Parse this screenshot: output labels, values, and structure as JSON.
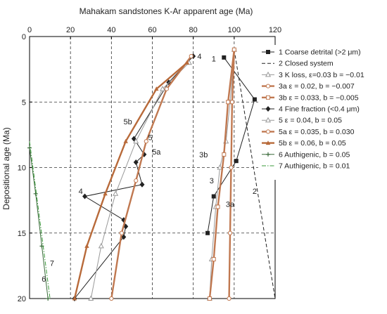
{
  "chart_data": {
    "type": "line",
    "title": "",
    "xlabel": "Mahakam sandstones K-Ar apparent age (Ma)",
    "ylabel": "Depositional age (Ma)",
    "xlim": [
      0,
      120
    ],
    "ylim": [
      0,
      20
    ],
    "y_inverted": true,
    "x_axis_position": "top",
    "xticks": [
      0,
      20,
      40,
      60,
      80,
      100,
      120
    ],
    "yticks": [
      0,
      5,
      10,
      15,
      20
    ],
    "grid": "dashed major gridlines",
    "legend_position": "top-right",
    "series": [
      {
        "name": "1 Coarse detrital (>2 μm)",
        "color": "#222222",
        "marker": "square-filled",
        "line": "solid-thin",
        "points": [
          [
            95,
            1.6
          ],
          [
            110,
            4.8
          ],
          [
            101,
            9.5
          ],
          [
            90,
            12.2
          ],
          [
            87,
            15
          ]
        ]
      },
      {
        "name": "2 Closed system",
        "color": "#222222",
        "marker": "none",
        "line": "dashed",
        "points": [
          [
            100,
            1
          ],
          [
            120,
            20
          ]
        ]
      },
      {
        "name": "3 K loss, ε=0.03 b = −0.01",
        "color": "#999999",
        "marker": "triangle-open",
        "line": "solid-thin",
        "points": [
          [
            100,
            1
          ],
          [
            98,
            5
          ],
          [
            96,
            8
          ],
          [
            93,
            10
          ],
          [
            91,
            13
          ],
          [
            89,
            17
          ],
          [
            88,
            20
          ]
        ]
      },
      {
        "name": "3a ε = 0.02, b = −0.007",
        "color": "#c07850",
        "marker": "circle-open",
        "line": "solid-thick",
        "points": [
          [
            100,
            1
          ],
          [
            99,
            5
          ],
          [
            98.5,
            10
          ],
          [
            98,
            15
          ],
          [
            97.5,
            20
          ]
        ]
      },
      {
        "name": "3b ε = 0.033, b = −0.005",
        "color": "#c07850",
        "marker": "square-open",
        "line": "solid-thick",
        "points": [
          [
            100,
            1
          ],
          [
            97,
            5
          ],
          [
            95,
            9
          ],
          [
            92,
            13
          ],
          [
            90,
            17
          ],
          [
            88,
            20
          ]
        ]
      },
      {
        "name": "4 Fine fraction (<0.4 μm)",
        "color": "#222222",
        "marker": "diamond-filled",
        "line": "solid-thin",
        "points": [
          [
            80,
            1.5
          ],
          [
            68,
            3.5
          ],
          [
            51,
            7.8
          ],
          [
            56,
            9
          ],
          [
            52,
            9.6
          ],
          [
            55,
            11.3
          ],
          [
            27,
            12.2
          ],
          [
            46,
            14
          ],
          [
            47,
            14.5
          ],
          [
            46,
            15.3
          ],
          [
            22,
            20
          ]
        ]
      },
      {
        "name": "5 ε = 0.04, b = 0.05",
        "color": "#999999",
        "marker": "triangle-open",
        "line": "solid-thin",
        "points": [
          [
            78,
            2
          ],
          [
            65,
            4
          ],
          [
            52,
            8
          ],
          [
            42,
            12
          ],
          [
            35,
            16
          ],
          [
            30,
            20
          ]
        ]
      },
      {
        "name": "5a ε = 0.035, b = 0.030",
        "color": "#c07850",
        "marker": "circle-open",
        "line": "solid-thick",
        "points": [
          [
            79,
            1.5
          ],
          [
            67,
            4
          ],
          [
            57,
            8
          ],
          [
            52,
            11
          ],
          [
            45,
            15
          ],
          [
            40,
            20
          ]
        ]
      },
      {
        "name": "5b ε = 0.06, b = 0.05",
        "color": "#b86a3a",
        "marker": "triangle-filled",
        "line": "solid-thick",
        "points": [
          [
            77,
            2
          ],
          [
            62,
            4
          ],
          [
            47,
            8
          ],
          [
            37,
            12
          ],
          [
            28,
            16
          ],
          [
            22,
            20
          ]
        ]
      },
      {
        "name": "6 Authigenic, b = 0.05",
        "color": "#3a6a3a",
        "marker": "plus",
        "line": "solid-thin",
        "points": [
          [
            0,
            8.5
          ],
          [
            3,
            12
          ],
          [
            6,
            16
          ],
          [
            9,
            20
          ]
        ]
      },
      {
        "name": "7 Authigenic, b = 0.01",
        "color": "#3a9a3a",
        "marker": "none",
        "line": "dashdot",
        "points": [
          [
            0,
            8
          ],
          [
            10,
            20
          ]
        ]
      }
    ],
    "annotations": [
      {
        "text": "1",
        "x": 90,
        "y": 1.7
      },
      {
        "text": "2",
        "x": 110,
        "y": 11.8
      },
      {
        "text": "3",
        "x": 89,
        "y": 11
      },
      {
        "text": "3a",
        "x": 98,
        "y": 12.8
      },
      {
        "text": "3b",
        "x": 85,
        "y": 9
      },
      {
        "text": "4",
        "x": 83,
        "y": 1.5
      },
      {
        "text": "4",
        "x": 25,
        "y": 11.8
      },
      {
        "text": "5",
        "x": 59,
        "y": 7.7
      },
      {
        "text": "5a",
        "x": 62,
        "y": 8.8
      },
      {
        "text": "5b",
        "x": 48,
        "y": 6.5
      },
      {
        "text": "6",
        "x": 7,
        "y": 18.5
      },
      {
        "text": "7",
        "x": 11,
        "y": 17.3
      }
    ]
  }
}
